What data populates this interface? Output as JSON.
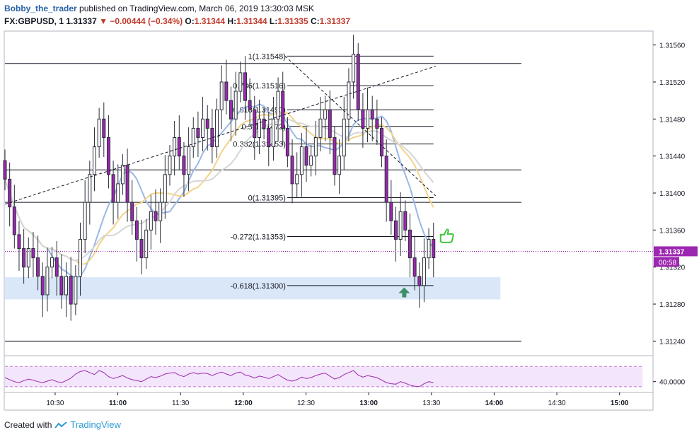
{
  "header": {
    "author": "Bobby_the_trader",
    "published": "published on TradingView.com, March 06, 2019 13:30:03 MSK"
  },
  "symbol_line": {
    "symbol": "FX:GBPUSD, 1",
    "last": "1.31337",
    "change": "−0.00444 (−0.34%)",
    "o_label": "O:",
    "o_value": "1.31344",
    "h_label": "H:",
    "h_value": "1.31344",
    "l_label": "L:",
    "l_value": "1.31335",
    "c_label": "C:",
    "c_value": "1.31337",
    "colors": {
      "down": "#c0392b"
    }
  },
  "footer": {
    "created_with": "Created with",
    "brand": "TradingView"
  },
  "colors": {
    "candle_up": "#ffffff",
    "candle_down": "#9c27b0",
    "candle_border": "#2a2e39",
    "ma_fast": "#9bb7e6",
    "ma_mid": "#f2d48a",
    "ma_slow": "#d6d6d6",
    "zone": "#d6e4f7",
    "rsi_band": "#f3e5fb",
    "rsi_line": "#9c27b0",
    "arrow_up": "#3e8e6a",
    "thumb": "#3cc73c"
  },
  "chart_data": {
    "type": "candlestick",
    "symbol": "FX:GBPUSD",
    "timeframe": "1",
    "y_range": [
      1.31225,
      1.31575
    ],
    "y_ticks": [
      "1.31560",
      "1.31520",
      "1.31480",
      "1.31440",
      "1.31400",
      "1.31360",
      "1.31320",
      "1.31280",
      "1.31240"
    ],
    "y_tick_values": [
      1.3156,
      1.3152,
      1.3148,
      1.3144,
      1.314,
      1.3136,
      1.3132,
      1.3128,
      1.3124
    ],
    "x_ticks": [
      "10:30",
      "11:00",
      "11:30",
      "12:00",
      "12:30",
      "13:00",
      "13:30",
      "14:00",
      "14:30",
      "15:00"
    ],
    "x_tick_minutes": [
      630,
      660,
      690,
      720,
      750,
      780,
      810,
      840,
      870,
      900
    ],
    "x_bold": [
      "11:00",
      "12:00",
      "13:00",
      "14:00",
      "15:00"
    ],
    "x_range_minutes": [
      606,
      916
    ],
    "price_label": "1.31337",
    "countdown": "00:58",
    "horizontal_lines": [
      1.3154,
      1.31425,
      1.3139,
      1.3124
    ],
    "fib_levels": [
      {
        "label": "1(1.31548)",
        "value": 1.31548
      },
      {
        "label": "0.786(1.31516)",
        "value": 1.31516
      },
      {
        "label": "0.618(1.31490)",
        "value": 1.3149
      },
      {
        "label": "0.5(1.31472)",
        "value": 1.31472
      },
      {
        "label": "0.382(1.31453)",
        "value": 1.31453
      },
      {
        "label": "0(1.31395)",
        "value": 1.31395
      },
      {
        "label": "-0.272(1.31353)",
        "value": 1.31353
      },
      {
        "label": "-0.618(1.31300)",
        "value": 1.313
      }
    ],
    "fib_span_minutes": [
      741,
      811
    ],
    "support_zone": {
      "from": 1.31285,
      "to": 1.31309,
      "t_start": 606,
      "t_end": 843
    },
    "trendlines": [
      {
        "style": "dashed",
        "t1": 606,
        "p1": 1.31388,
        "t2": 812,
        "p2": 1.31537
      },
      {
        "style": "dashed",
        "t1": 740,
        "p1": 1.31548,
        "t2": 812,
        "p2": 1.31397
      }
    ],
    "candles_close": [
      1.31415,
      1.31385,
      1.31355,
      1.3134,
      1.3132,
      1.3134,
      1.3133,
      1.3131,
      1.3129,
      1.3132,
      1.3133,
      1.3131,
      1.3129,
      1.3131,
      1.3128,
      1.3131,
      1.3135,
      1.3139,
      1.3142,
      1.3145,
      1.3148,
      1.3146,
      1.3142,
      1.3139,
      1.3141,
      1.3143,
      1.3139,
      1.3137,
      1.3135,
      1.3133,
      1.3136,
      1.3138,
      1.3137,
      1.3139,
      1.3142,
      1.3144,
      1.3146,
      1.3144,
      1.3142,
      1.3145,
      1.3147,
      1.3146,
      1.3148,
      1.3147,
      1.3145,
      1.3149,
      1.3152,
      1.315,
      1.3148,
      1.3151,
      1.3153,
      1.315,
      1.3149,
      1.3146,
      1.3148,
      1.3147,
      1.3145,
      1.3148,
      1.3151,
      1.3147,
      1.3144,
      1.3141,
      1.3142,
      1.3145,
      1.3143,
      1.3144,
      1.3146,
      1.3148,
      1.3149,
      1.3146,
      1.3142,
      1.3144,
      1.3148,
      1.3152,
      1.3155,
      1.3149,
      1.3147,
      1.3149,
      1.3148,
      1.3147,
      1.3144,
      1.3139,
      1.3137,
      1.3135,
      1.3138,
      1.3136,
      1.3133,
      1.3131,
      1.313,
      1.3133,
      1.3135,
      1.3133
    ],
    "ma_lines": [
      "fast",
      "mid",
      "slow"
    ],
    "rsi": {
      "level_label": "40.0000",
      "level": 40,
      "range": [
        20,
        90
      ],
      "bands": [
        70,
        30
      ],
      "values": [
        48,
        44,
        40,
        38,
        42,
        45,
        43,
        40,
        38,
        41,
        44,
        40,
        38,
        42,
        47,
        55,
        60,
        62,
        58,
        54,
        62,
        58,
        50,
        46,
        49,
        52,
        47,
        44,
        42,
        40,
        45,
        50,
        48,
        51,
        55,
        57,
        58,
        53,
        50,
        55,
        58,
        55,
        57,
        56,
        52,
        56,
        59,
        55,
        52,
        57,
        59,
        53,
        51,
        47,
        51,
        49,
        46,
        50,
        54,
        48,
        43,
        41,
        44,
        49,
        46,
        48,
        52,
        55,
        57,
        51,
        45,
        48,
        54,
        58,
        62,
        53,
        49,
        52,
        50,
        48,
        43,
        38,
        36,
        35,
        40,
        37,
        33,
        31,
        30,
        36,
        40,
        38
      ]
    }
  }
}
